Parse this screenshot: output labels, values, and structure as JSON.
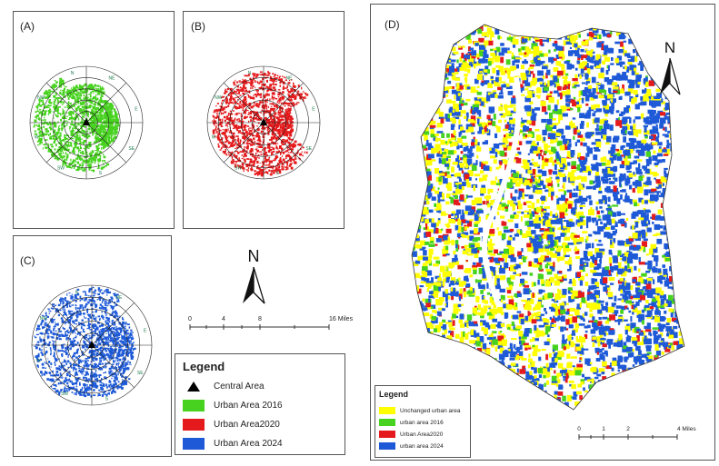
{
  "panels": {
    "a_label": "(A)",
    "b_label": "(B)",
    "c_label": "(C)",
    "d_label": "(D)"
  },
  "directions": [
    "N",
    "NE",
    "E",
    "SE",
    "S",
    "SW",
    "W",
    "NW"
  ],
  "north_arrow": "N",
  "scale_bar_1": {
    "ticks": [
      "0",
      "4",
      "8",
      "16 Miles"
    ]
  },
  "scale_bar_2": {
    "ticks": [
      "0",
      "1",
      "2",
      "4 Miles"
    ]
  },
  "legend_1": {
    "title": "Legend",
    "items": [
      {
        "label": "Central Area",
        "symbol": "triangle",
        "color": "#000000"
      },
      {
        "label": "Urban Area 2016",
        "color": "#46d21e"
      },
      {
        "label": "Urban Area2020",
        "color": "#e41a1c"
      },
      {
        "label": "Urban Area 2024",
        "color": "#1e5ad7"
      }
    ]
  },
  "legend_2": {
    "title": "Legend",
    "items": [
      {
        "label": "Unchanged urban area",
        "color": "#ffff00"
      },
      {
        "label": "urban area 2016",
        "color": "#46d21e"
      },
      {
        "label": "Urban Area2020",
        "color": "#e41a1c"
      },
      {
        "label": "urban area 2024",
        "color": "#1e5ad7"
      }
    ]
  }
}
